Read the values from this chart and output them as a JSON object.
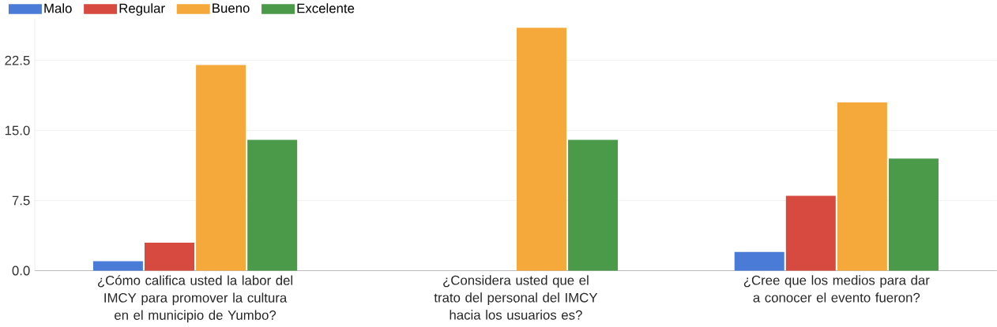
{
  "chart_data": {
    "type": "bar",
    "categories": [
      "¿Cómo califica usted la labor del IMCY para promover la cultura en el municipio de Yumbo?",
      "¿Considera usted que el trato del personal del IMCY hacia los usuarios es?",
      "¿Cree que los medios para dar a conocer el evento fueron?"
    ],
    "series": [
      {
        "name": "Malo",
        "color": "#4a7bd6",
        "values": [
          1,
          0,
          2
        ]
      },
      {
        "name": "Regular",
        "color": "#d64a3f",
        "values": [
          3,
          0,
          8
        ]
      },
      {
        "name": "Bueno",
        "color": "#f6a93b",
        "values": [
          22,
          26,
          18
        ]
      },
      {
        "name": "Excelente",
        "color": "#4a9a4a",
        "values": [
          14,
          14,
          12
        ]
      }
    ],
    "yticks": [
      {
        "value": 0,
        "label": "0.0"
      },
      {
        "value": 7.5,
        "label": "7.5"
      },
      {
        "value": 15,
        "label": "15.0"
      },
      {
        "value": 22.5,
        "label": "22.5"
      }
    ],
    "ylim": [
      0,
      27
    ],
    "grid": "y",
    "legend": "top left"
  }
}
